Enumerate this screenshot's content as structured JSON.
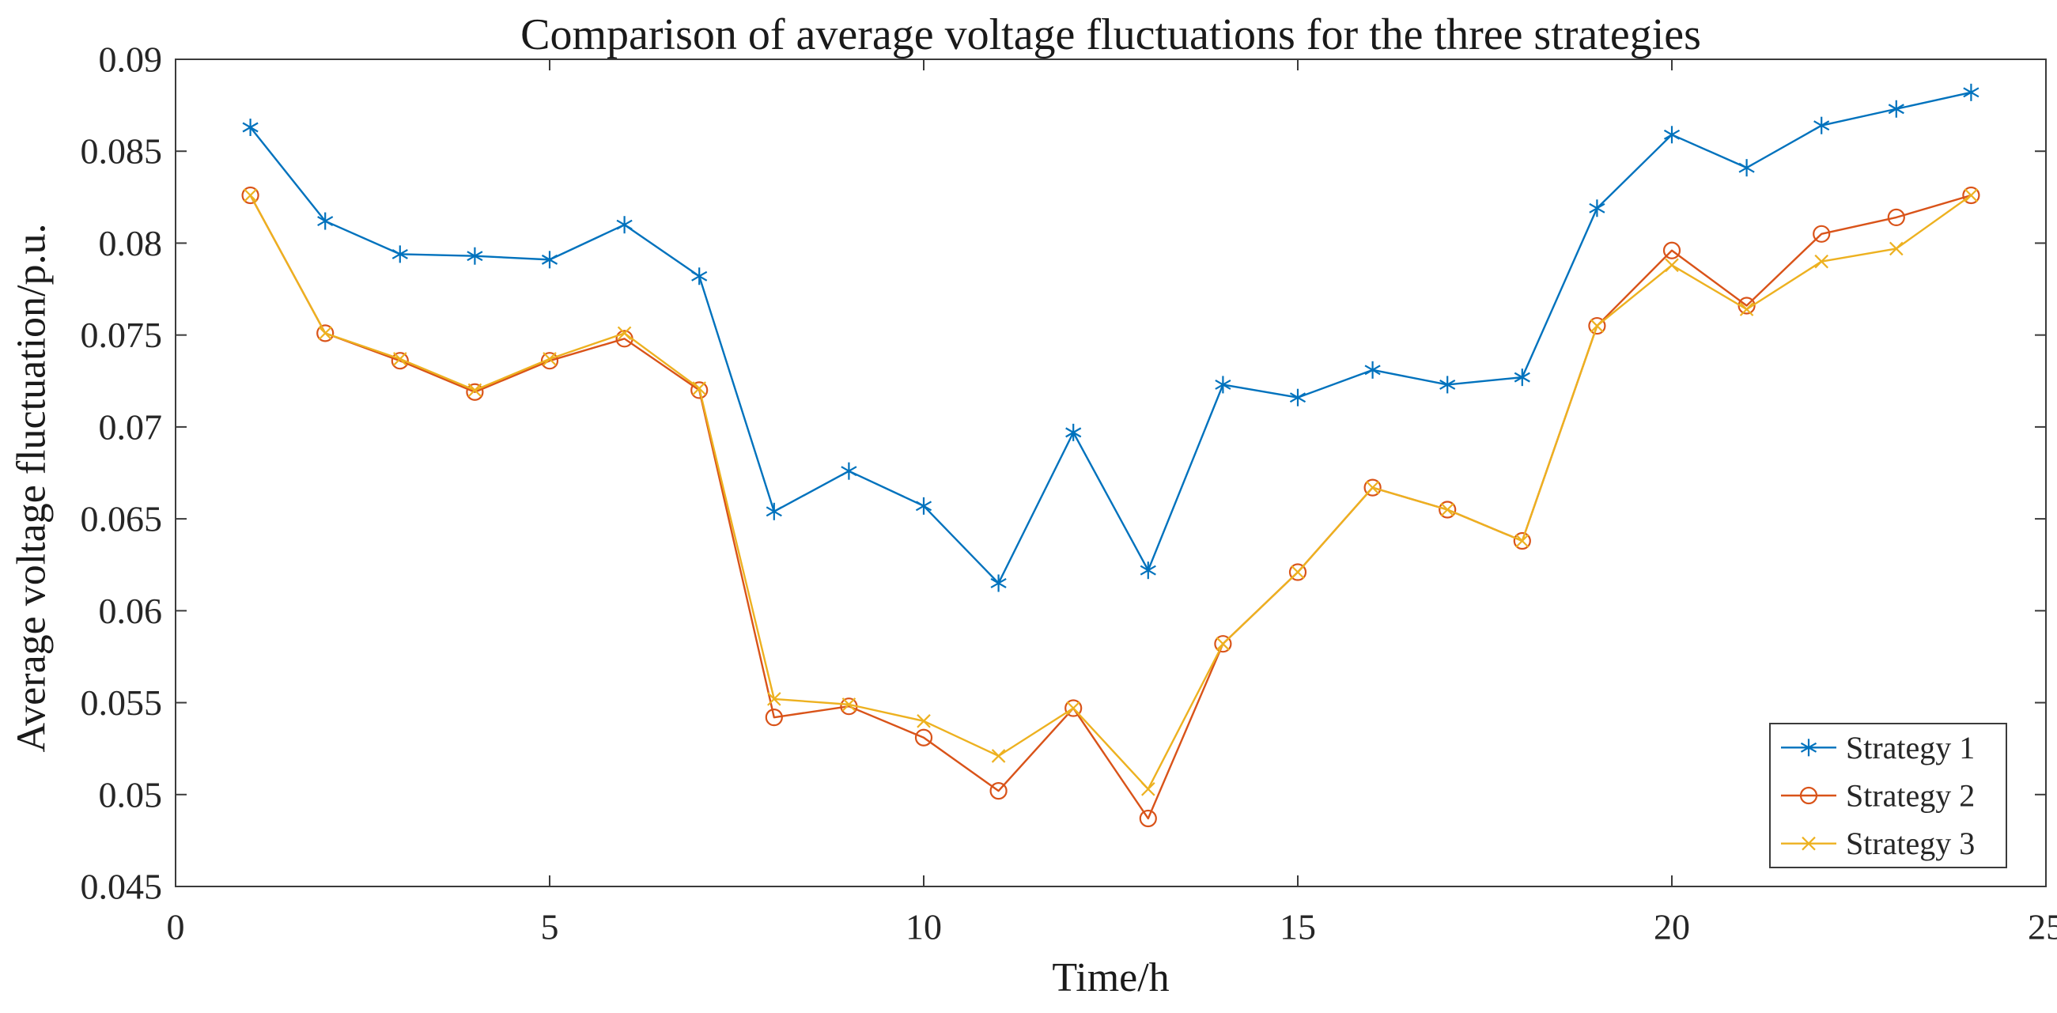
{
  "figure": {
    "background": "#ffffff"
  },
  "chart_data": {
    "type": "line",
    "title": "Comparison of average voltage fluctuations for the three strategies",
    "xlabel": "Time/h",
    "ylabel": "Average voltage fluctuation/p.u.",
    "xlim": [
      0,
      25
    ],
    "ylim": [
      0.045,
      0.09
    ],
    "xticks": [
      0,
      5,
      10,
      15,
      20,
      25
    ],
    "xtick_labels": [
      "0",
      "5",
      "10",
      "15",
      "20",
      "25"
    ],
    "yticks": [
      0.045,
      0.05,
      0.055,
      0.06,
      0.065,
      0.07,
      0.075,
      0.08,
      0.085,
      0.09
    ],
    "ytick_labels": [
      "0.045",
      "0.05",
      "0.055",
      "0.06",
      "0.065",
      "0.07",
      "0.075",
      "0.08",
      "0.085",
      "0.09"
    ],
    "grid": false,
    "legend_position": "bottom-right",
    "axis_color": "#3b3b3b",
    "text_color": "#262626",
    "x": [
      1,
      2,
      3,
      4,
      5,
      6,
      7,
      8,
      9,
      10,
      11,
      12,
      13,
      14,
      15,
      16,
      17,
      18,
      19,
      20,
      21,
      22,
      23,
      24
    ],
    "series": [
      {
        "name": "Strategy 1",
        "color": "#0072BD",
        "marker": "asterisk",
        "values": [
          0.0863,
          0.0812,
          0.0794,
          0.0793,
          0.0791,
          0.081,
          0.0782,
          0.0654,
          0.0676,
          0.0657,
          0.0615,
          0.0697,
          0.0622,
          0.0723,
          0.0716,
          0.0731,
          0.0723,
          0.0727,
          0.0819,
          0.0859,
          0.0841,
          0.0864,
          0.0873,
          0.0882
        ]
      },
      {
        "name": "Strategy 2",
        "color": "#D95319",
        "marker": "circle",
        "values": [
          0.0826,
          0.0751,
          0.0736,
          0.0719,
          0.0736,
          0.0748,
          0.072,
          0.0542,
          0.0548,
          0.0531,
          0.0502,
          0.0547,
          0.0487,
          0.0582,
          0.0621,
          0.0667,
          0.0655,
          0.0638,
          0.0755,
          0.0796,
          0.0766,
          0.0805,
          0.0814,
          0.0826
        ]
      },
      {
        "name": "Strategy 3",
        "color": "#EDB120",
        "marker": "x",
        "values": [
          0.0826,
          0.0751,
          0.0737,
          0.072,
          0.0737,
          0.0751,
          0.0721,
          0.0552,
          0.0549,
          0.054,
          0.0521,
          0.0547,
          0.0503,
          0.0582,
          0.0621,
          0.0667,
          0.0655,
          0.0638,
          0.0755,
          0.0788,
          0.0764,
          0.079,
          0.0797,
          0.0826
        ]
      }
    ]
  }
}
